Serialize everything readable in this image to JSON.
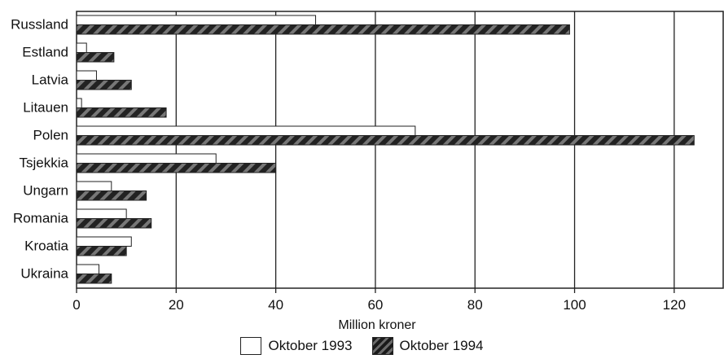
{
  "chart_data": {
    "type": "bar",
    "orientation": "horizontal",
    "categories": [
      "Russland",
      "Estland",
      "Latvia",
      "Litauen",
      "Polen",
      "Tsjekkia",
      "Ungarn",
      "Romania",
      "Kroatia",
      "Ukraina"
    ],
    "series": [
      {
        "name": "Oktober 1993",
        "values": [
          48,
          2,
          4,
          1,
          68,
          28,
          7,
          10,
          11,
          4.5
        ],
        "color": "#ffffff"
      },
      {
        "name": "Oktober 1994",
        "values": [
          99,
          7.5,
          11,
          18,
          124,
          40,
          14,
          15,
          10,
          7
        ],
        "color": "#2a2a2a"
      }
    ],
    "xlabel": "Million kroner",
    "xlim": [
      0,
      130
    ],
    "xticks": [
      "0",
      "20",
      "40",
      "60",
      "80",
      "100",
      "120"
    ],
    "grid": true,
    "legend_position": "bottom"
  }
}
